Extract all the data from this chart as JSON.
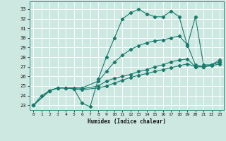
{
  "title": "",
  "xlabel": "Humidex (Indice chaleur)",
  "ylabel": "",
  "bg_color": "#cce8e0",
  "grid_color": "#ffffff",
  "line_color": "#1a7a6e",
  "xlim": [
    -0.5,
    23.5
  ],
  "ylim": [
    22.5,
    33.8
  ],
  "xticks": [
    0,
    1,
    2,
    3,
    4,
    5,
    6,
    7,
    8,
    9,
    10,
    11,
    12,
    13,
    14,
    15,
    16,
    17,
    18,
    19,
    20,
    21,
    22,
    23
  ],
  "yticks": [
    23,
    24,
    25,
    26,
    27,
    28,
    29,
    30,
    31,
    32,
    33
  ],
  "line1_x": [
    0,
    1,
    2,
    3,
    4,
    5,
    6,
    7,
    8,
    9,
    10,
    11,
    12,
    13,
    14,
    15,
    16,
    17,
    18,
    19,
    20,
    21,
    22,
    23
  ],
  "line1_y": [
    23.0,
    24.0,
    24.5,
    24.8,
    24.8,
    24.7,
    23.2,
    22.85,
    25.7,
    28.0,
    30.0,
    32.0,
    32.6,
    33.0,
    32.5,
    32.2,
    32.2,
    32.8,
    32.2,
    29.2,
    32.2,
    27.2,
    27.2,
    27.7
  ],
  "line2_x": [
    0,
    2,
    3,
    4,
    5,
    6,
    8,
    9,
    10,
    11,
    12,
    13,
    14,
    15,
    16,
    17,
    18,
    19,
    20,
    21,
    22,
    23
  ],
  "line2_y": [
    23.0,
    24.5,
    24.8,
    24.8,
    24.8,
    24.8,
    25.5,
    26.5,
    27.5,
    28.2,
    28.8,
    29.2,
    29.5,
    29.7,
    29.8,
    30.0,
    30.2,
    29.3,
    27.2,
    27.0,
    27.2,
    27.5
  ],
  "line3_x": [
    0,
    2,
    3,
    4,
    5,
    6,
    8,
    9,
    10,
    11,
    12,
    13,
    14,
    15,
    16,
    17,
    18,
    19,
    20,
    21,
    22,
    23
  ],
  "line3_y": [
    23.0,
    24.5,
    24.8,
    24.8,
    24.7,
    24.7,
    25.0,
    25.5,
    25.8,
    26.0,
    26.2,
    26.5,
    26.7,
    27.0,
    27.2,
    27.5,
    27.7,
    27.8,
    27.0,
    27.0,
    27.2,
    27.5
  ],
  "line4_x": [
    0,
    2,
    3,
    4,
    5,
    6,
    8,
    9,
    10,
    11,
    12,
    13,
    14,
    15,
    16,
    17,
    18,
    19,
    20,
    21,
    22,
    23
  ],
  "line4_y": [
    23.0,
    24.5,
    24.8,
    24.8,
    24.7,
    24.6,
    24.8,
    25.0,
    25.3,
    25.6,
    25.9,
    26.1,
    26.3,
    26.5,
    26.7,
    26.9,
    27.1,
    27.3,
    27.0,
    27.0,
    27.1,
    27.3
  ]
}
